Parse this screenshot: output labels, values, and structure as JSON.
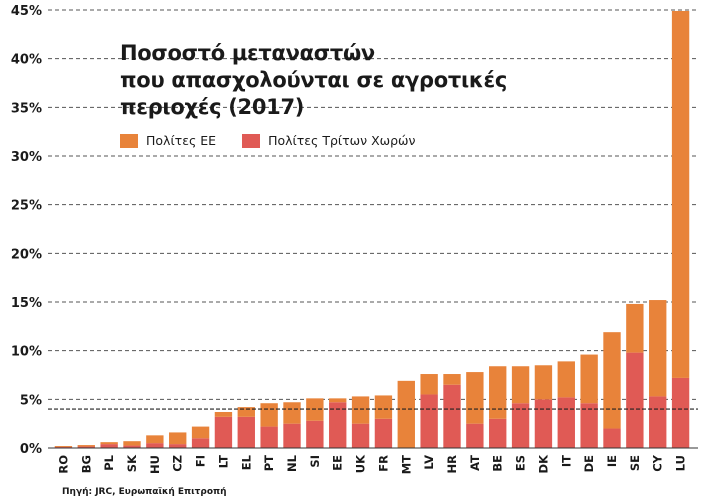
{
  "chart_data": {
    "type": "bar",
    "stacked": true,
    "title_lines": [
      "Ποσοστό μεταναστών",
      "που απασχολούνται σε αγροτικές",
      "περιοχές (2017)"
    ],
    "categories": [
      "RO",
      "BG",
      "PL",
      "SK",
      "HU",
      "CZ",
      "FI",
      "LT",
      "EL",
      "PT",
      "NL",
      "SI",
      "EE",
      "UK",
      "FR",
      "MT",
      "LV",
      "HR",
      "AT",
      "BE",
      "ES",
      "DK",
      "IT",
      "DE",
      "IE",
      "SE",
      "CY",
      "LU"
    ],
    "series": [
      {
        "name": "Πολίτες Τρίτων Χωρών",
        "color": "#e05a55",
        "values": [
          0.1,
          0.15,
          0.4,
          0.25,
          0.5,
          0.4,
          1.0,
          3.2,
          3.2,
          2.2,
          2.5,
          2.8,
          4.7,
          2.5,
          3.0,
          0.0,
          5.5,
          6.5,
          2.5,
          3.0,
          4.6,
          5.0,
          5.2,
          4.6,
          2.0,
          9.8,
          5.3,
          7.2
        ]
      },
      {
        "name": "Πολίτες ΕΕ",
        "color": "#e8833a",
        "values": [
          0.1,
          0.15,
          0.2,
          0.45,
          0.8,
          1.2,
          1.2,
          0.5,
          1.0,
          2.4,
          2.2,
          2.3,
          0.4,
          2.8,
          2.4,
          6.9,
          2.1,
          1.1,
          5.3,
          5.4,
          3.8,
          3.5,
          3.7,
          5.0,
          9.9,
          5.0,
          9.9,
          37.7
        ]
      }
    ],
    "legend": [
      {
        "label": "Πολίτες ΕΕ",
        "color": "#e8833a"
      },
      {
        "label": "Πολίτες Τρίτων Χωρών",
        "color": "#e05a55"
      }
    ],
    "ylim": [
      0,
      45
    ],
    "yticks": [
      "0%",
      "5%",
      "10%",
      "15%",
      "20%",
      "25%",
      "30%",
      "35%",
      "40%",
      "45%"
    ],
    "reference_line": 4.0,
    "source": "Πηγή: JRC, Ευρωπαϊκή Επιτροπή"
  }
}
